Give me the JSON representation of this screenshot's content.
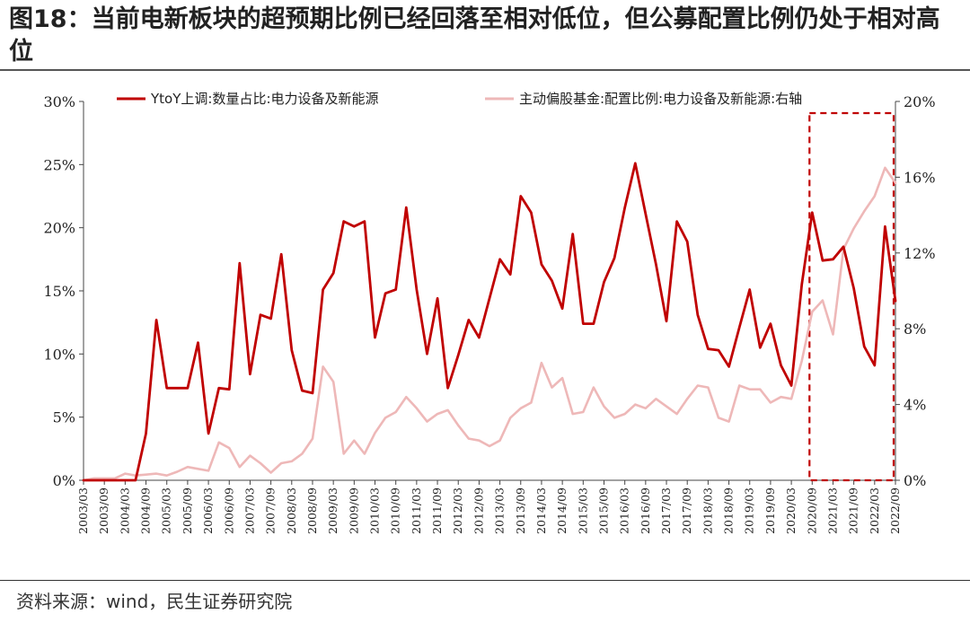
{
  "title": "图18：当前电新板块的超预期比例已经回落至相对低位，但公募配置比例仍处于相对高位",
  "source": "资料来源：wind，民生证券研究院",
  "colors": {
    "series1": "#c00000",
    "series2": "#eeb8b8",
    "highlight_box": "#c00000",
    "axis": "#444444"
  },
  "chart_data": {
    "type": "line",
    "x": [
      "2003/03",
      "2003/06",
      "2003/09",
      "2003/12",
      "2004/03",
      "2004/06",
      "2004/09",
      "2004/12",
      "2005/03",
      "2005/06",
      "2005/09",
      "2005/12",
      "2006/03",
      "2006/06",
      "2006/09",
      "2006/12",
      "2007/03",
      "2007/06",
      "2007/09",
      "2007/12",
      "2008/03",
      "2008/06",
      "2008/09",
      "2008/12",
      "2009/03",
      "2009/06",
      "2009/09",
      "2009/12",
      "2010/03",
      "2010/06",
      "2010/09",
      "2010/12",
      "2011/03",
      "2011/06",
      "2011/09",
      "2011/12",
      "2012/03",
      "2012/06",
      "2012/09",
      "2012/12",
      "2013/03",
      "2013/06",
      "2013/09",
      "2013/12",
      "2014/03",
      "2014/06",
      "2014/09",
      "2014/12",
      "2015/03",
      "2015/06",
      "2015/09",
      "2015/12",
      "2016/03",
      "2016/06",
      "2016/09",
      "2016/12",
      "2017/03",
      "2017/06",
      "2017/09",
      "2017/12",
      "2018/03",
      "2018/06",
      "2018/09",
      "2018/12",
      "2019/03",
      "2019/06",
      "2019/09",
      "2019/12",
      "2020/03",
      "2020/06",
      "2020/09",
      "2020/12",
      "2021/03",
      "2021/06",
      "2021/09",
      "2021/12",
      "2022/03",
      "2022/06",
      "2022/09"
    ],
    "x_tick_labels": [
      "2003/03",
      "2003/09",
      "2004/03",
      "2004/09",
      "2005/03",
      "2005/09",
      "2006/03",
      "2006/09",
      "2007/03",
      "2007/09",
      "2008/03",
      "2008/09",
      "2009/03",
      "2009/09",
      "2010/03",
      "2010/09",
      "2011/03",
      "2011/09",
      "2012/03",
      "2012/09",
      "2013/03",
      "2013/09",
      "2014/03",
      "2014/09",
      "2015/03",
      "2015/09",
      "2016/03",
      "2016/09",
      "2017/03",
      "2017/09",
      "2018/03",
      "2018/09",
      "2019/03",
      "2019/09",
      "2020/03",
      "2020/09",
      "2021/03",
      "2021/09",
      "2022/03",
      "2022/09"
    ],
    "series": [
      {
        "name": "YtoY上调:数量占比:电力设备及新能源",
        "axis": "left",
        "values": [
          0,
          0,
          0,
          0,
          0,
          0,
          3.7,
          12.7,
          7.3,
          7.3,
          7.3,
          10.9,
          3.7,
          7.3,
          7.2,
          17.2,
          8.4,
          13.1,
          12.8,
          17.9,
          10.3,
          7.1,
          6.9,
          15.1,
          16.4,
          20.5,
          20.1,
          20.5,
          11.3,
          14.8,
          15.1,
          21.6,
          15.1,
          10.0,
          14.4,
          7.3,
          9.9,
          12.7,
          11.3,
          14.4,
          17.5,
          16.3,
          22.5,
          21.2,
          17.1,
          15.8,
          13.6,
          19.5,
          12.4,
          12.4,
          15.7,
          17.6,
          21.6,
          25.1,
          21.1,
          17.1,
          12.6,
          20.5,
          18.9,
          13.1,
          10.4,
          10.3,
          9.0,
          12.1,
          15.1,
          10.5,
          12.4,
          9.1,
          7.5,
          15.5,
          21.2,
          17.4,
          17.5,
          18.5,
          15.2,
          10.6,
          9.1,
          20.1,
          14.2
        ]
      },
      {
        "name": "主动偏股基金:配置比例:电力设备及新能源:右轴",
        "axis": "right",
        "values": [
          0.0,
          0.1,
          0.1,
          0.1,
          0.35,
          0.25,
          0.3,
          0.35,
          0.25,
          0.45,
          0.7,
          0.6,
          0.5,
          2.0,
          1.7,
          0.7,
          1.3,
          0.9,
          0.4,
          0.9,
          1.0,
          1.4,
          2.2,
          6.0,
          5.2,
          1.4,
          2.1,
          1.4,
          2.5,
          3.3,
          3.6,
          4.4,
          3.8,
          3.1,
          3.5,
          3.7,
          2.9,
          2.2,
          2.1,
          1.8,
          2.1,
          3.3,
          3.8,
          4.1,
          6.2,
          4.9,
          5.4,
          3.5,
          3.6,
          4.9,
          3.9,
          3.3,
          3.5,
          4.0,
          3.8,
          4.3,
          3.9,
          3.5,
          4.3,
          5.0,
          4.9,
          3.3,
          3.1,
          5.0,
          4.8,
          4.8,
          4.1,
          4.4,
          4.3,
          6.3,
          8.9,
          9.5,
          7.7,
          12.2,
          13.3,
          14.2,
          15.0,
          16.5,
          15.7
        ]
      }
    ],
    "left_axis": {
      "ylim": [
        0,
        30
      ],
      "ticks": [
        0,
        5,
        10,
        15,
        20,
        25,
        30
      ],
      "tick_labels": [
        "0%",
        "5%",
        "10%",
        "15%",
        "20%",
        "25%",
        "30%"
      ]
    },
    "right_axis": {
      "ylim": [
        0,
        20
      ],
      "ticks": [
        0,
        4,
        8,
        12,
        16,
        20
      ],
      "tick_labels": [
        "0%",
        "4%",
        "8%",
        "12%",
        "16%",
        "20%"
      ]
    },
    "highlight_range": [
      "2020/09",
      "2022/09"
    ],
    "legend_position": "top"
  }
}
